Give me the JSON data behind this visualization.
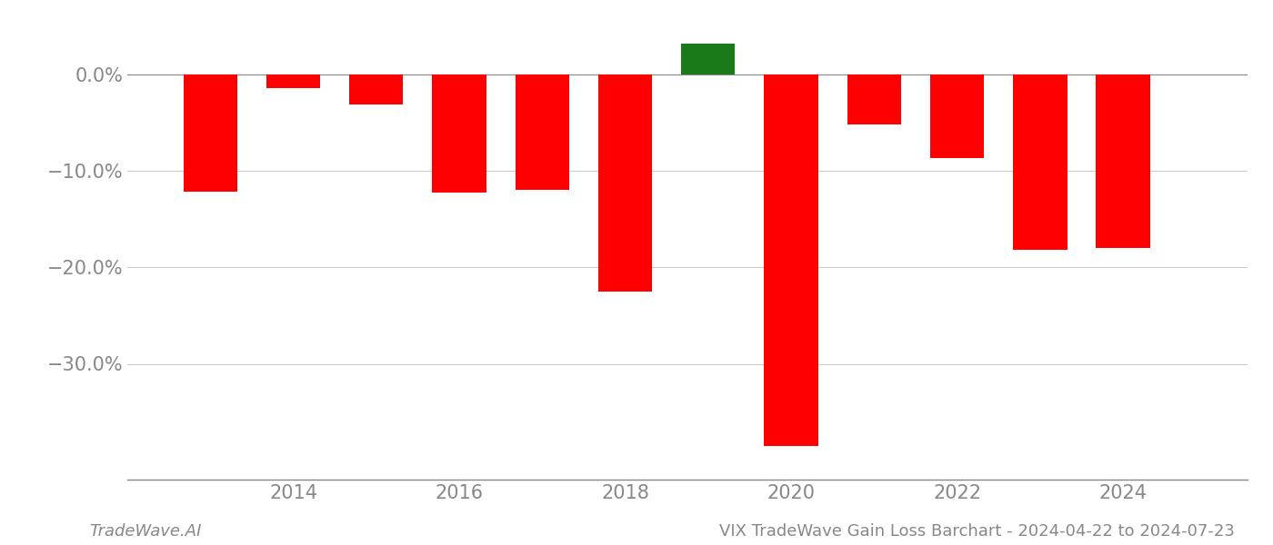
{
  "years": [
    2013,
    2014,
    2015,
    2016,
    2017,
    2018,
    2019,
    2020,
    2021,
    2022,
    2023,
    2024
  ],
  "values": [
    -12.2,
    -1.4,
    -3.1,
    -12.3,
    -12.0,
    -22.5,
    3.2,
    -38.5,
    -5.2,
    -8.7,
    -18.2,
    -18.0
  ],
  "colors": [
    "#ff0000",
    "#ff0000",
    "#ff0000",
    "#ff0000",
    "#ff0000",
    "#ff0000",
    "#1a7a1a",
    "#ff0000",
    "#ff0000",
    "#ff0000",
    "#ff0000",
    "#ff0000"
  ],
  "ylim": [
    -42,
    6
  ],
  "yticks": [
    0.0,
    -10.0,
    -20.0,
    -30.0
  ],
  "ytick_labels": [
    "0.0%",
    "−10.0%",
    "−20.0%",
    "−30.0%"
  ],
  "xlabel_years": [
    2014,
    2016,
    2018,
    2020,
    2022,
    2024
  ],
  "bar_width": 0.65,
  "background_color": "#ffffff",
  "grid_color": "#cccccc",
  "footer_left": "TradeWave.AI",
  "footer_right": "VIX TradeWave Gain Loss Barchart - 2024-04-22 to 2024-07-23",
  "tick_color": "#888888",
  "spine_color": "#888888",
  "tick_fontsize": 15,
  "footer_fontsize": 13
}
